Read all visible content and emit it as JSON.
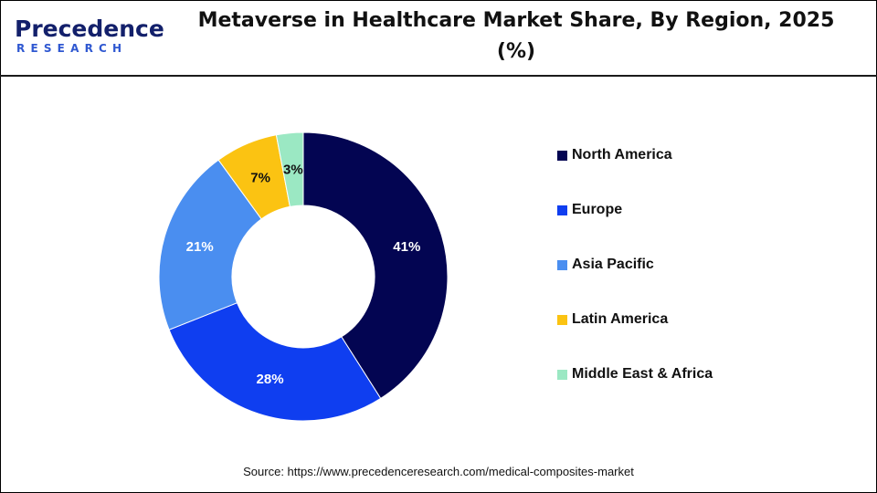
{
  "logo": {
    "word": "Precedence",
    "sub": "RESEARCH"
  },
  "title": "Metaverse in Healthcare Market Share, By Region, 2025 (%)",
  "source": "Source: https://www.precedenceresearch.com/medical-composites-market",
  "chart_data": {
    "type": "pie",
    "subtype": "donut",
    "title": "Metaverse in Healthcare Market Share, By Region, 2025 (%)",
    "categories": [
      "North America",
      "Europe",
      "Asia Pacific",
      "Latin America",
      "Middle East & Africa"
    ],
    "values": [
      41,
      28,
      21,
      7,
      3
    ],
    "labels": [
      "41%",
      "28%",
      "21%",
      "7%",
      "3%"
    ],
    "colors": [
      "#030552",
      "#0f3ef0",
      "#4a8ef0",
      "#fbc312",
      "#9be8c3"
    ],
    "label_colors": [
      "#ffffff",
      "#ffffff",
      "#ffffff",
      "#111111",
      "#111111"
    ],
    "legend_position": "right"
  }
}
